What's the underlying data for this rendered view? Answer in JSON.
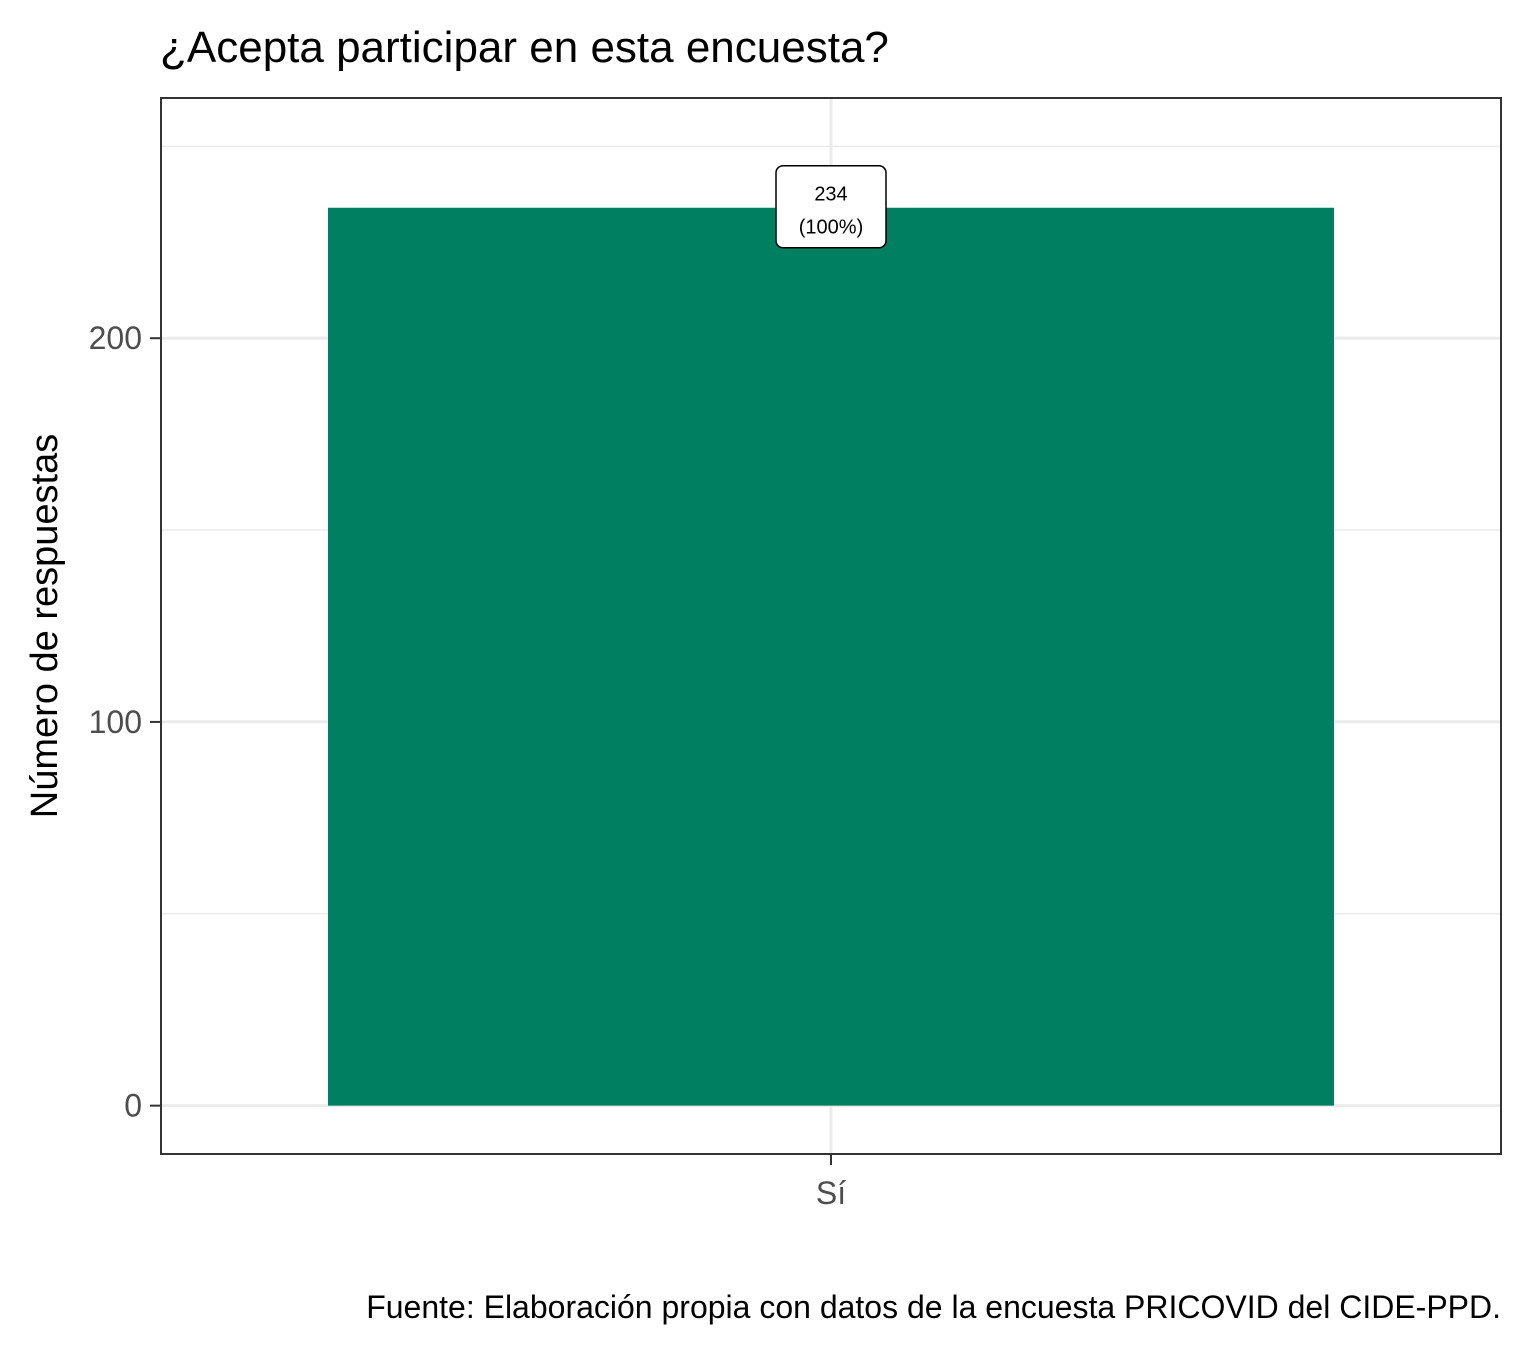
{
  "chart_data": {
    "type": "bar",
    "title": "¿Acepta participar en esta encuesta?",
    "xlabel": "",
    "ylabel": "Número de respuestas",
    "categories": [
      "Sí"
    ],
    "values": [
      234
    ],
    "value_labels": [
      {
        "count": "234",
        "percent": "(100%)"
      }
    ],
    "ylim": [
      -12.6,
      262.6
    ],
    "yticks": [
      0,
      100,
      200
    ],
    "ytick_labels": [
      "0",
      "100",
      "200"
    ],
    "minor_yticks": [
      50,
      150,
      250
    ],
    "grid": true,
    "legend": "none",
    "caption": "Fuente: Elaboración propia con datos de la encuesta PRICOVID del CIDE-PPD.",
    "colors": {
      "bar": "#008060",
      "grid": "#ebebeb",
      "axis_text": "#4d4d4d",
      "panel_border": "#333333",
      "text": "#000000"
    }
  }
}
